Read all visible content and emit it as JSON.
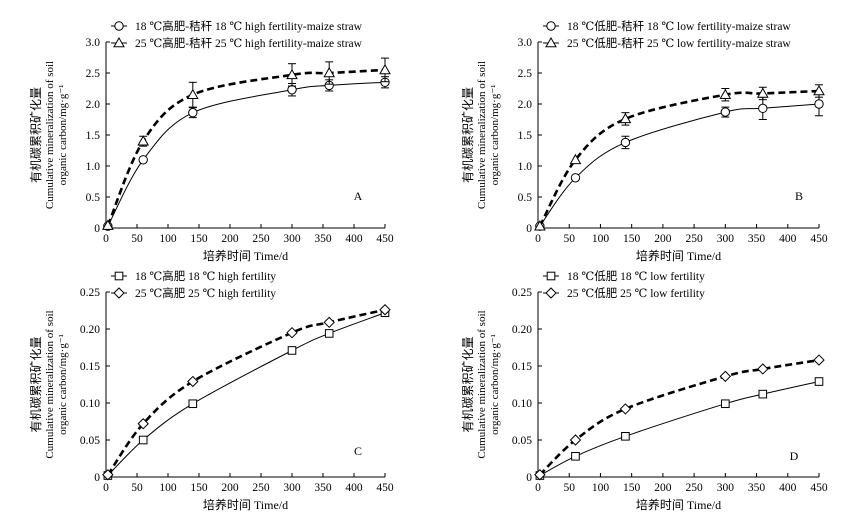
{
  "chart_data": [
    {
      "id": "A",
      "type": "line",
      "panel_letter": "A",
      "xlabel": "培养时间 Time/d",
      "ylabel_cn": "有机碳累积矿化量",
      "ylabel_en1": "Cumulative mineralization of soil",
      "ylabel_en2": "organic carbon/mg·g⁻¹",
      "xlim": [
        0,
        450
      ],
      "ylim": [
        0,
        3.0
      ],
      "xticks": [
        0,
        50,
        100,
        150,
        200,
        250,
        300,
        350,
        400,
        450
      ],
      "yticks": [
        0,
        0.5,
        1.0,
        1.5,
        2.0,
        2.5,
        3.0
      ],
      "ytick_labels": [
        "0",
        "0.5",
        "1.0",
        "1.5",
        "2.0",
        "2.5",
        "3.0"
      ],
      "grid": false,
      "legend_position": "top-left",
      "series": [
        {
          "name": "18 ℃高肥-秸秆 18 ℃ high fertility-maize straw",
          "marker": "circle",
          "line": "solid",
          "x": [
            3,
            60,
            140,
            300,
            360,
            450
          ],
          "y": [
            0.03,
            1.1,
            1.86,
            2.23,
            2.3,
            2.35
          ],
          "err": [
            0,
            0,
            0.08,
            0.1,
            0.09,
            0.09
          ]
        },
        {
          "name": "25 ℃高肥-秸秆 25 ℃ high fertility-maize straw",
          "marker": "triangle",
          "line": "dashed",
          "x": [
            3,
            60,
            140,
            300,
            360,
            450
          ],
          "y": [
            0.04,
            1.4,
            2.15,
            2.47,
            2.5,
            2.55
          ],
          "err": [
            0,
            0.08,
            0.2,
            0.18,
            0.18,
            0.19
          ]
        }
      ]
    },
    {
      "id": "B",
      "type": "line",
      "panel_letter": "B",
      "xlabel": "培养时间 Time/d",
      "ylabel_cn": "有机碳累积矿化量",
      "ylabel_en1": "Cumulative mineralization of soil",
      "ylabel_en2": "organic carbon/mg·g⁻¹",
      "xlim": [
        0,
        450
      ],
      "ylim": [
        0,
        3.0
      ],
      "xticks": [
        0,
        50,
        100,
        150,
        200,
        250,
        300,
        350,
        400,
        450
      ],
      "yticks": [
        0,
        0.5,
        1.0,
        1.5,
        2.0,
        2.5,
        3.0
      ],
      "ytick_labels": [
        "0",
        "0.5",
        "1.0",
        "1.5",
        "2.0",
        "2.5",
        "3.0"
      ],
      "grid": false,
      "legend_position": "top-left",
      "series": [
        {
          "name": "18 ℃低肥-秸秆 18 ℃ low fertility-maize straw",
          "marker": "circle",
          "line": "solid",
          "x": [
            3,
            60,
            140,
            300,
            360,
            450
          ],
          "y": [
            0.03,
            0.81,
            1.38,
            1.87,
            1.93,
            2.0
          ],
          "err": [
            0,
            0,
            0.1,
            0.08,
            0.18,
            0.19
          ]
        },
        {
          "name": "25 ℃低肥-秸秆 25 ℃ low fertility-maize straw",
          "marker": "triangle",
          "line": "dashed",
          "x": [
            3,
            60,
            140,
            300,
            360,
            450
          ],
          "y": [
            0.03,
            1.1,
            1.76,
            2.15,
            2.17,
            2.21
          ],
          "err": [
            0,
            0,
            0.1,
            0.1,
            0.1,
            0.1
          ]
        }
      ]
    },
    {
      "id": "C",
      "type": "line",
      "panel_letter": "C",
      "xlabel": "培养时间 Time/d",
      "ylabel_cn": "有机碳累积矿化量",
      "ylabel_en1": "Cumulative mineralization of soil",
      "ylabel_en2": "organic carbon/mg·g⁻¹",
      "xlim": [
        0,
        450
      ],
      "ylim": [
        0,
        0.25
      ],
      "xticks": [
        0,
        50,
        100,
        150,
        200,
        250,
        300,
        350,
        400,
        450
      ],
      "yticks": [
        0,
        0.05,
        0.1,
        0.15,
        0.2,
        0.25
      ],
      "ytick_labels": [
        "0",
        "0.05",
        "0.10",
        "0.15",
        "0.20",
        "0.25"
      ],
      "grid": false,
      "legend_position": "top-left",
      "series": [
        {
          "name": "18 ℃高肥 18 ℃ high fertility",
          "marker": "square",
          "line": "solid",
          "x": [
            3,
            60,
            140,
            300,
            360,
            450
          ],
          "y": [
            0.002,
            0.05,
            0.099,
            0.171,
            0.194,
            0.222
          ],
          "err": [
            0,
            0,
            0,
            0,
            0,
            0
          ]
        },
        {
          "name": "25 ℃高肥 25 ℃ high fertility",
          "marker": "diamond",
          "line": "dashed",
          "x": [
            3,
            60,
            140,
            300,
            360,
            450
          ],
          "y": [
            0.003,
            0.072,
            0.129,
            0.195,
            0.209,
            0.226
          ],
          "err": [
            0,
            0,
            0,
            0,
            0,
            0
          ]
        }
      ]
    },
    {
      "id": "D",
      "type": "line",
      "panel_letter": "D",
      "xlabel": "培养时间 Time/d",
      "ylabel_cn": "有机碳累积矿化量",
      "ylabel_en1": "Cumulative mineralization of soil",
      "ylabel_en2": "organic carbon/mg·g⁻¹",
      "xlim": [
        0,
        450
      ],
      "ylim": [
        0,
        0.25
      ],
      "xticks": [
        0,
        50,
        100,
        150,
        200,
        250,
        300,
        350,
        400,
        450
      ],
      "yticks": [
        0,
        0.05,
        0.1,
        0.15,
        0.2,
        0.25
      ],
      "ytick_labels": [
        "0",
        "0.05",
        "0.10",
        "0.15",
        "0.20",
        "0.25"
      ],
      "grid": false,
      "legend_position": "top-left",
      "series": [
        {
          "name": "18 ℃低肥 18 ℃ low fertility",
          "marker": "square",
          "line": "solid",
          "x": [
            3,
            60,
            140,
            300,
            360,
            450
          ],
          "y": [
            0.002,
            0.028,
            0.055,
            0.099,
            0.112,
            0.129
          ],
          "err": [
            0,
            0,
            0,
            0,
            0,
            0
          ]
        },
        {
          "name": "25 ℃低肥 25 ℃ low fertility",
          "marker": "diamond",
          "line": "dashed",
          "x": [
            3,
            60,
            140,
            300,
            360,
            450
          ],
          "y": [
            0.003,
            0.05,
            0.092,
            0.136,
            0.146,
            0.158
          ],
          "err": [
            0,
            0,
            0,
            0,
            0,
            0
          ]
        }
      ]
    }
  ]
}
